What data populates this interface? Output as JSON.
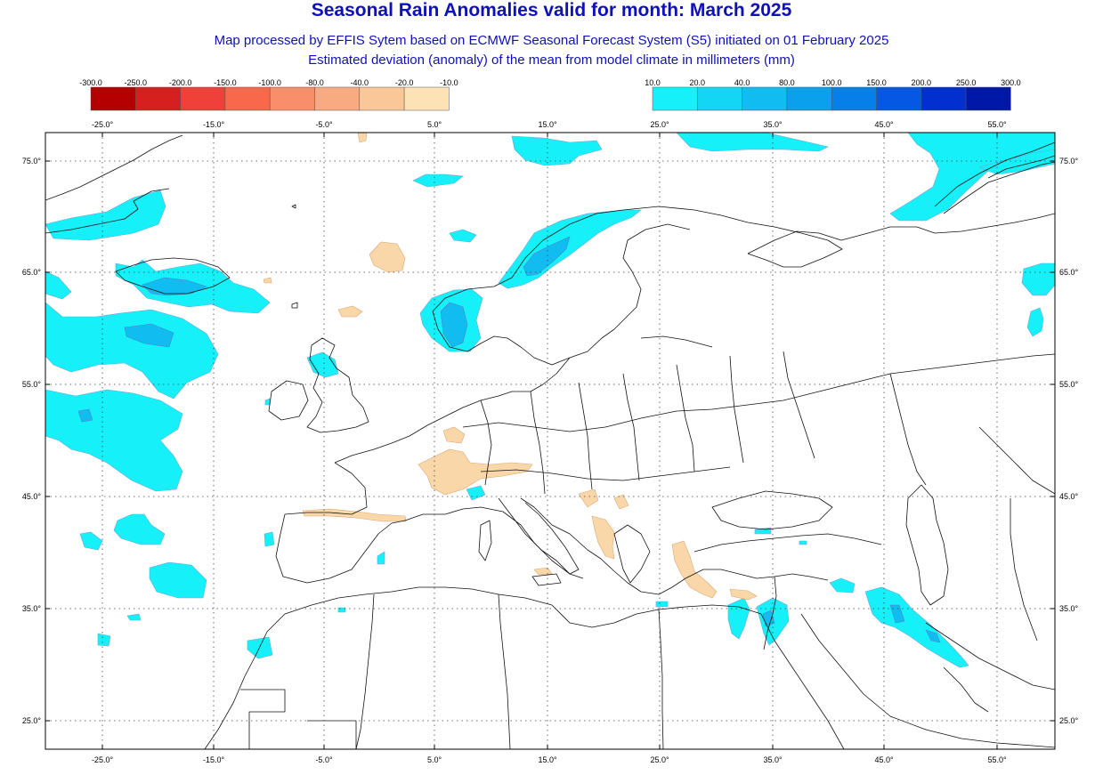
{
  "header": {
    "title": "Seasonal Rain Anomalies valid for month: March 2025",
    "subtitle1": "Map processed by EFFIS Sytem based on ECMWF Seasonal Forecast System (S5) initiated on 01 February 2025",
    "subtitle2": "Estimated deviation (anomaly) of the mean from model climate in millimeters (mm)"
  },
  "legend_negative": {
    "labels": [
      "-300.0",
      "-250.0",
      "-200.0",
      "-150.0",
      "-100.0",
      "-80.0",
      "-40.0",
      "-20.0",
      "-10.0"
    ],
    "colors": [
      "#b40000",
      "#d62020",
      "#f0403a",
      "#f8684a",
      "#f88e6a",
      "#f8aa80",
      "#fac898",
      "#fde2b6"
    ]
  },
  "legend_positive": {
    "labels": [
      "10.0",
      "20.0",
      "40.0",
      "80.0",
      "100.0",
      "150.0",
      "200.0",
      "250.0",
      "300.0"
    ],
    "colors": [
      "#16f0f8",
      "#12d6f4",
      "#10bcf0",
      "#0aa0ec",
      "#0680e8",
      "#0458e4",
      "#0230d0",
      "#0018a8"
    ]
  },
  "map": {
    "lon_labels": [
      "-25.0°",
      "-15.0°",
      "-5.0°",
      "5.0°",
      "15.0°",
      "25.0°",
      "35.0°",
      "45.0°",
      "55.0°"
    ],
    "lat_labels": [
      "75.0°",
      "65.0°",
      "55.0°",
      "45.0°",
      "35.0°",
      "25.0°"
    ],
    "colors": {
      "frame": "#000000",
      "grid": "#444444",
      "wet": "#16f0f8",
      "wet_mid": "#10bcf0",
      "dry": "#fad7a8"
    }
  }
}
